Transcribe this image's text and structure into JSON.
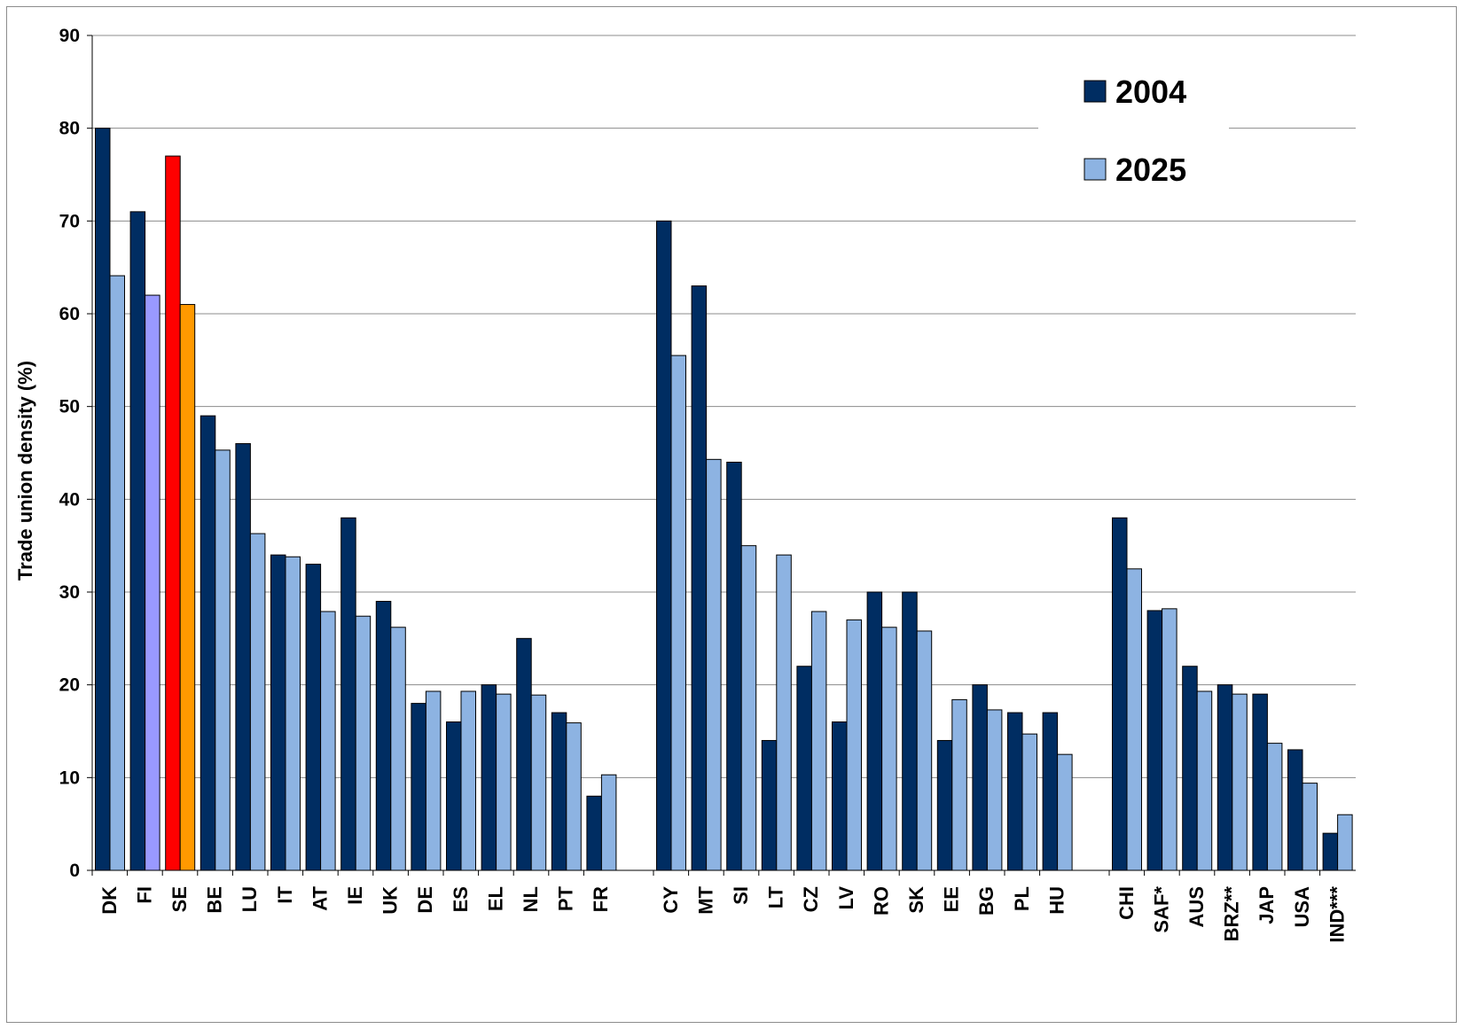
{
  "chart_data": {
    "type": "bar",
    "ylabel": "Trade union density (%)",
    "ylim": [
      0,
      90
    ],
    "yticks": [
      0,
      10,
      20,
      30,
      40,
      50,
      60,
      70,
      80,
      90
    ],
    "grid": true,
    "legend_position": "top-right",
    "categories": [
      "DK",
      "FI",
      "SE",
      "BE",
      "LU",
      "IT",
      "AT",
      "IE",
      "UK",
      "DE",
      "ES",
      "EL",
      "NL",
      "PT",
      "FR",
      "CY",
      "MT",
      "SI",
      "LT",
      "CZ",
      "LV",
      "RO",
      "SK",
      "EE",
      "BG",
      "PL",
      "HU",
      "CHI",
      "SAF*",
      "AUS",
      "BRZ**",
      "JAP",
      "USA",
      "IND***"
    ],
    "groups": [
      {
        "start": 0,
        "end": 14
      },
      {
        "start": 15,
        "end": 26
      },
      {
        "start": 27,
        "end": 33
      }
    ],
    "series": [
      {
        "name": "2004",
        "color": "#002d62",
        "values": [
          80,
          71,
          77,
          49,
          46,
          34,
          33,
          38,
          29,
          18,
          16,
          20,
          25,
          17,
          8,
          70,
          63,
          44,
          14,
          22,
          16,
          30,
          30,
          14,
          20,
          17,
          17,
          38,
          28,
          22,
          20,
          19,
          13,
          4
        ],
        "highlight_colors": {
          "2": "#ff0000"
        }
      },
      {
        "name": "2025",
        "color": "#8db3e2",
        "values": [
          64.1,
          62,
          61,
          45.3,
          36.3,
          33.8,
          27.9,
          27.4,
          26.2,
          19.3,
          19.3,
          19,
          18.9,
          15.9,
          10.3,
          55.5,
          44.3,
          35,
          34,
          27.9,
          27,
          26.2,
          25.8,
          18.4,
          17.3,
          14.7,
          12.5,
          32.5,
          28.2,
          19.3,
          19,
          13.7,
          9.4,
          6
        ],
        "highlight_colors": {
          "1": "#9999ff",
          "2": "#ff9900"
        }
      }
    ]
  }
}
